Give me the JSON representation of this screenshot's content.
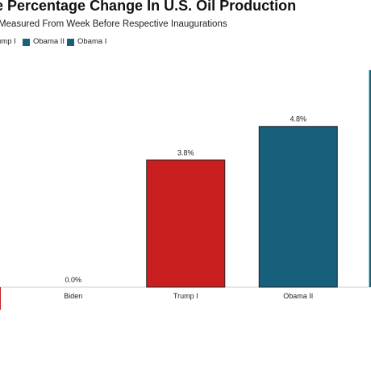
{
  "title": "ate Percentage Change In U.S. Oil Production",
  "subtitle": "Measured From Week Before Respective Inaugurations",
  "legend": [
    {
      "label": "ump I",
      "color": "#c9201f"
    },
    {
      "label": "Obama II",
      "color": "#17607c"
    },
    {
      "label": "Obama I",
      "color": "#17607c"
    }
  ],
  "chart_data": {
    "type": "bar",
    "categories": [
      "Biden",
      "Trump I",
      "Obama II"
    ],
    "values": [
      0.0,
      3.8,
      4.8
    ],
    "data_labels": [
      "0.0%",
      "3.8%",
      "4.8%"
    ],
    "colors": [
      "#c9201f",
      "#c9201f",
      "#17607c"
    ],
    "title": "ate Percentage Change In U.S. Oil Production",
    "subtitle": "Measured From Week Before Respective Inaugurations",
    "xlabel": "",
    "ylabel": "",
    "ylim": [
      0,
      6.48
    ],
    "grid": false,
    "legend_position": "top-left"
  }
}
